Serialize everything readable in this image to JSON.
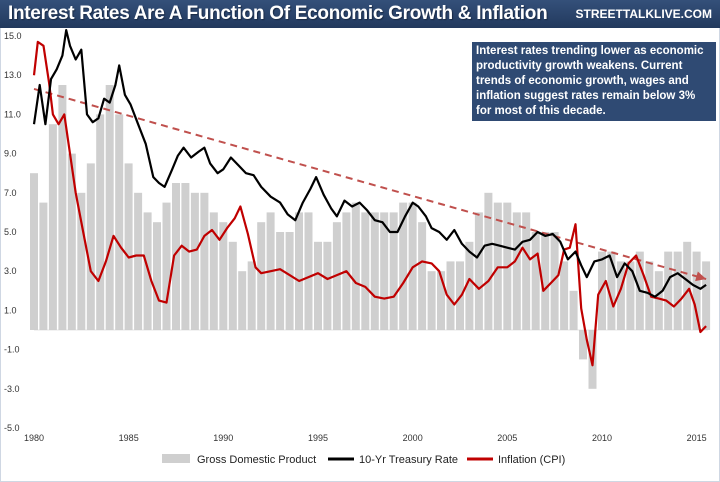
{
  "title": "Interest Rates Are A Function Of Economic Growth & Inflation",
  "brand": "STREETTALKLIVE.COM",
  "annotation": "Interest rates trending lower as economic productivity growth weakens.   Current trends of economic growth, wages and inflation suggest rates remain below 3% for most of this decade.",
  "colors": {
    "header": "#34507a",
    "gdp": "#cfcfcf",
    "treasury": "#000000",
    "inflation": "#c00000",
    "trend": "#c0504d",
    "annotation_bg": "#2f4a73"
  },
  "chart_data": {
    "type": "line",
    "xlim": [
      1980,
      2015.6
    ],
    "ylim": [
      -5,
      15
    ],
    "x_ticks": [
      "1980",
      "1985",
      "1990",
      "1995",
      "2000",
      "2005",
      "2010",
      "2015"
    ],
    "y_ticks": [
      "15.0",
      "13.0",
      "11.0",
      "9.0",
      "7.0",
      "5.0",
      "3.0",
      "1.0",
      "-1.0",
      "-3.0",
      "-5.0"
    ],
    "legend_position": "bottom",
    "series": [
      {
        "name": "Gross Domestic Product",
        "kind": "bar",
        "x": [
          1980.0,
          1980.5,
          1981.0,
          1981.5,
          1982.0,
          1982.5,
          1983.0,
          1983.5,
          1984.0,
          1984.5,
          1985.0,
          1985.5,
          1986.0,
          1986.5,
          1987.0,
          1987.5,
          1988.0,
          1988.5,
          1989.0,
          1989.5,
          1990.0,
          1990.5,
          1991.0,
          1991.5,
          1992.0,
          1992.5,
          1993.0,
          1993.5,
          1994.0,
          1994.5,
          1995.0,
          1995.5,
          1996.0,
          1996.5,
          1997.0,
          1997.5,
          1998.0,
          1998.5,
          1999.0,
          1999.5,
          2000.0,
          2000.5,
          2001.0,
          2001.5,
          2002.0,
          2002.5,
          2003.0,
          2003.5,
          2004.0,
          2004.5,
          2005.0,
          2005.5,
          2006.0,
          2006.5,
          2007.0,
          2007.5,
          2008.0,
          2008.5,
          2009.0,
          2009.5,
          2010.0,
          2010.5,
          2011.0,
          2011.5,
          2012.0,
          2012.5,
          2013.0,
          2013.5,
          2014.0,
          2014.5,
          2015.0,
          2015.5
        ],
        "values": [
          8.0,
          6.5,
          10.5,
          12.5,
          9.0,
          7.0,
          8.5,
          11.0,
          12.5,
          11.0,
          8.5,
          7.0,
          6.0,
          5.5,
          6.5,
          7.5,
          7.5,
          7.0,
          7.0,
          6.0,
          5.5,
          4.5,
          3.0,
          3.5,
          5.5,
          6.0,
          5.0,
          5.0,
          6.0,
          6.0,
          4.5,
          4.5,
          5.5,
          6.0,
          6.5,
          6.0,
          6.0,
          6.0,
          6.0,
          6.5,
          6.5,
          5.5,
          3.0,
          3.0,
          3.5,
          3.5,
          4.5,
          6.0,
          7.0,
          6.5,
          6.5,
          6.0,
          6.0,
          5.0,
          5.0,
          5.0,
          3.5,
          2.0,
          -1.5,
          -3.0,
          4.0,
          4.0,
          3.5,
          3.5,
          4.0,
          3.5,
          3.0,
          4.0,
          4.0,
          4.5,
          4.0,
          3.5
        ]
      },
      {
        "name": "10-Yr Treasury Rate",
        "kind": "line",
        "x": [
          1980.0,
          1980.3,
          1980.6,
          1980.9,
          1981.2,
          1981.5,
          1981.7,
          1981.9,
          1982.2,
          1982.5,
          1982.8,
          1983.1,
          1983.4,
          1983.7,
          1984.0,
          1984.3,
          1984.5,
          1984.8,
          1985.1,
          1985.5,
          1985.9,
          1986.3,
          1986.6,
          1986.9,
          1987.3,
          1987.6,
          1987.9,
          1988.3,
          1988.7,
          1989.0,
          1989.3,
          1989.7,
          1990.0,
          1990.4,
          1990.8,
          1991.2,
          1991.6,
          1992.0,
          1992.5,
          1993.0,
          1993.4,
          1993.8,
          1994.2,
          1994.6,
          1994.9,
          1995.3,
          1995.7,
          1996.0,
          1996.4,
          1996.8,
          1997.2,
          1997.6,
          1998.0,
          1998.4,
          1998.8,
          1999.2,
          1999.6,
          2000.0,
          2000.3,
          2000.7,
          2001.0,
          2001.4,
          2001.8,
          2002.2,
          2002.6,
          2003.0,
          2003.4,
          2003.8,
          2004.2,
          2004.6,
          2005.0,
          2005.4,
          2005.8,
          2006.2,
          2006.6,
          2007.0,
          2007.4,
          2007.8,
          2008.2,
          2008.6,
          2008.9,
          2009.2,
          2009.6,
          2010.0,
          2010.4,
          2010.8,
          2011.2,
          2011.6,
          2012.0,
          2012.4,
          2012.8,
          2013.2,
          2013.6,
          2014.0,
          2014.4,
          2014.8,
          2015.2,
          2015.5
        ],
        "values": [
          10.5,
          12.5,
          10.5,
          12.8,
          13.3,
          14.0,
          15.3,
          14.5,
          13.8,
          14.3,
          11.0,
          10.6,
          10.8,
          11.8,
          11.6,
          12.5,
          13.5,
          12.0,
          11.5,
          10.5,
          9.5,
          7.8,
          7.5,
          7.3,
          8.2,
          8.9,
          9.3,
          8.8,
          9.1,
          9.3,
          8.5,
          8.0,
          8.2,
          8.8,
          8.4,
          8.0,
          7.9,
          7.3,
          6.8,
          6.5,
          5.9,
          5.6,
          6.5,
          7.2,
          7.8,
          6.9,
          6.2,
          5.8,
          6.6,
          6.3,
          6.5,
          6.1,
          5.6,
          5.5,
          5.0,
          5.0,
          5.8,
          6.5,
          6.3,
          5.8,
          5.2,
          5.0,
          4.6,
          5.1,
          4.4,
          4.0,
          3.7,
          4.3,
          4.4,
          4.3,
          4.2,
          4.1,
          4.5,
          4.6,
          5.0,
          4.8,
          4.9,
          4.5,
          3.6,
          4.0,
          3.3,
          2.7,
          3.5,
          3.6,
          3.8,
          2.7,
          3.4,
          3.0,
          2.0,
          1.9,
          1.7,
          2.0,
          2.7,
          2.9,
          2.6,
          2.3,
          2.1,
          2.3
        ]
      },
      {
        "name": "Inflation (CPI)",
        "kind": "line",
        "x": [
          1980.0,
          1980.2,
          1980.5,
          1980.8,
          1981.0,
          1981.3,
          1981.6,
          1981.9,
          1982.2,
          1982.6,
          1983.0,
          1983.4,
          1983.8,
          1984.2,
          1984.6,
          1985.0,
          1985.4,
          1985.8,
          1986.2,
          1986.6,
          1987.0,
          1987.4,
          1987.8,
          1988.2,
          1988.6,
          1989.0,
          1989.4,
          1989.8,
          1990.2,
          1990.6,
          1990.9,
          1991.3,
          1991.7,
          1992.0,
          1992.5,
          1993.0,
          1993.5,
          1994.0,
          1994.5,
          1995.0,
          1995.5,
          1996.0,
          1996.5,
          1997.0,
          1997.5,
          1998.0,
          1998.5,
          1999.0,
          1999.5,
          2000.0,
          2000.5,
          2001.0,
          2001.4,
          2001.8,
          2002.2,
          2002.6,
          2003.0,
          2003.5,
          2004.0,
          2004.5,
          2005.0,
          2005.4,
          2005.8,
          2006.2,
          2006.6,
          2006.9,
          2007.3,
          2007.7,
          2008.0,
          2008.3,
          2008.6,
          2008.9,
          2009.2,
          2009.5,
          2009.8,
          2010.2,
          2010.6,
          2011.0,
          2011.4,
          2011.8,
          2012.2,
          2012.6,
          2013.0,
          2013.4,
          2013.8,
          2014.2,
          2014.6,
          2014.9,
          2015.2,
          2015.5
        ],
        "values": [
          13.0,
          14.7,
          14.5,
          12.6,
          11.0,
          10.5,
          11.0,
          9.0,
          7.0,
          5.0,
          3.0,
          2.5,
          3.5,
          4.8,
          4.2,
          3.7,
          3.8,
          3.8,
          2.5,
          1.5,
          1.4,
          3.8,
          4.3,
          4.0,
          4.1,
          4.8,
          5.1,
          4.6,
          5.2,
          5.7,
          6.3,
          4.9,
          3.2,
          2.9,
          3.0,
          3.1,
          2.8,
          2.5,
          2.7,
          2.9,
          2.6,
          2.8,
          3.0,
          2.4,
          2.2,
          1.7,
          1.6,
          1.7,
          2.4,
          3.2,
          3.5,
          3.4,
          3.0,
          1.8,
          1.3,
          1.8,
          2.6,
          2.1,
          2.5,
          3.2,
          3.2,
          3.5,
          4.2,
          3.6,
          3.9,
          2.0,
          2.4,
          2.8,
          4.1,
          4.2,
          5.4,
          1.1,
          -0.5,
          -1.8,
          1.8,
          2.5,
          1.2,
          2.1,
          3.4,
          3.8,
          2.8,
          1.7,
          1.6,
          1.5,
          1.2,
          1.6,
          2.1,
          1.3,
          -0.1,
          0.2
        ]
      },
      {
        "kind": "trend",
        "x": [
          1980.0,
          2015.5
        ],
        "values": [
          12.3,
          2.6
        ]
      }
    ]
  }
}
